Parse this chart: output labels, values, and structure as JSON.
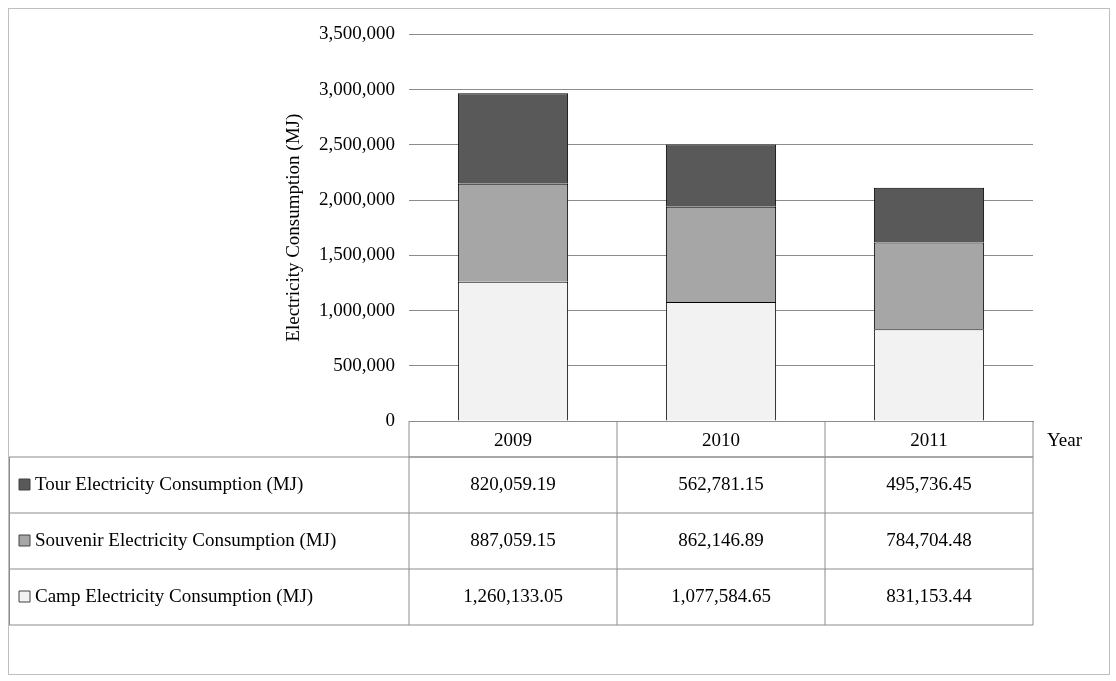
{
  "chart_data": {
    "type": "bar",
    "stacked": true,
    "xlabel": "Year",
    "ylabel": "Electricity Consumption (MJ)",
    "categories": [
      "2009",
      "2010",
      "2011"
    ],
    "series": [
      {
        "name": "Camp Electricity Consumption (MJ)",
        "color": "#f2f2f2",
        "values": [
          1260133.05,
          1077584.65,
          831153.44
        ],
        "value_labels": [
          "1,260,133.05",
          "1,077,584.65",
          "831,153.44"
        ]
      },
      {
        "name": "Souvenir Electricity Consumption (MJ)",
        "color": "#a6a6a6",
        "values": [
          887059.15,
          862146.89,
          784704.48
        ],
        "value_labels": [
          "887,059.15",
          "862,146.89",
          "784,704.48"
        ]
      },
      {
        "name": "Tour Electricity Consumption (MJ)",
        "color": "#595959",
        "values": [
          820059.19,
          562781.15,
          495736.45
        ],
        "value_labels": [
          "820,059.19",
          "562,781.15",
          "495,736.45"
        ]
      }
    ],
    "ylim": [
      0,
      3500000
    ],
    "yticks": [
      0,
      {
        "value": 500000,
        "label": "500,000"
      },
      {
        "value": 1000000,
        "label": "1,000,000"
      },
      {
        "value": 1500000,
        "label": "1,500,000"
      },
      {
        "value": 2000000,
        "label": "2,000,000"
      },
      {
        "value": 2500000,
        "label": "2,500,000"
      },
      {
        "value": 3000000,
        "label": "3,000,000"
      },
      {
        "value": 3500000,
        "label": "3,500,000"
      }
    ],
    "grid": "y",
    "legend": "bottom"
  }
}
